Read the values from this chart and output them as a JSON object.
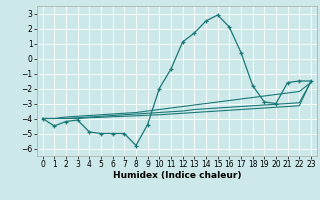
{
  "xlabel": "Humidex (Indice chaleur)",
  "background_color": "#cce8e8",
  "grid_color": "#ffffff",
  "line_color": "#1a7878",
  "x_values": [
    0,
    1,
    2,
    3,
    4,
    5,
    6,
    7,
    8,
    9,
    10,
    11,
    12,
    13,
    14,
    15,
    16,
    17,
    18,
    19,
    20,
    21,
    22,
    23
  ],
  "y_main": [
    -4.0,
    -4.5,
    -4.2,
    -4.1,
    -4.9,
    -5.0,
    -5.0,
    -5.0,
    -5.8,
    -4.4,
    -2.0,
    -0.7,
    1.1,
    1.7,
    2.5,
    2.9,
    2.1,
    0.4,
    -1.8,
    -2.9,
    -3.0,
    -1.6,
    -1.5,
    -1.5
  ],
  "y_line1": [
    -4.0,
    -4.0,
    -3.9,
    -3.85,
    -3.8,
    -3.75,
    -3.7,
    -3.65,
    -3.6,
    -3.5,
    -3.4,
    -3.3,
    -3.2,
    -3.1,
    -3.0,
    -2.9,
    -2.8,
    -2.7,
    -2.6,
    -2.5,
    -2.4,
    -2.3,
    -2.2,
    -1.6
  ],
  "y_line2": [
    -4.0,
    -4.0,
    -4.0,
    -3.95,
    -3.9,
    -3.85,
    -3.8,
    -3.75,
    -3.7,
    -3.65,
    -3.6,
    -3.55,
    -3.5,
    -3.4,
    -3.35,
    -3.3,
    -3.25,
    -3.2,
    -3.15,
    -3.1,
    -3.05,
    -3.0,
    -2.95,
    -1.55
  ],
  "y_line3": [
    -4.0,
    -4.0,
    -4.0,
    -4.0,
    -3.95,
    -3.92,
    -3.88,
    -3.85,
    -3.82,
    -3.78,
    -3.75,
    -3.7,
    -3.65,
    -3.6,
    -3.55,
    -3.5,
    -3.45,
    -3.4,
    -3.35,
    -3.3,
    -3.25,
    -3.2,
    -3.15,
    -1.5
  ],
  "xlim": [
    -0.5,
    23.5
  ],
  "ylim": [
    -6.5,
    3.5
  ],
  "yticks": [
    -6,
    -5,
    -4,
    -3,
    -2,
    -1,
    0,
    1,
    2,
    3
  ],
  "xticks": [
    0,
    1,
    2,
    3,
    4,
    5,
    6,
    7,
    8,
    9,
    10,
    11,
    12,
    13,
    14,
    15,
    16,
    17,
    18,
    19,
    20,
    21,
    22,
    23
  ],
  "tick_fontsize": 5.5,
  "xlabel_fontsize": 6.5
}
